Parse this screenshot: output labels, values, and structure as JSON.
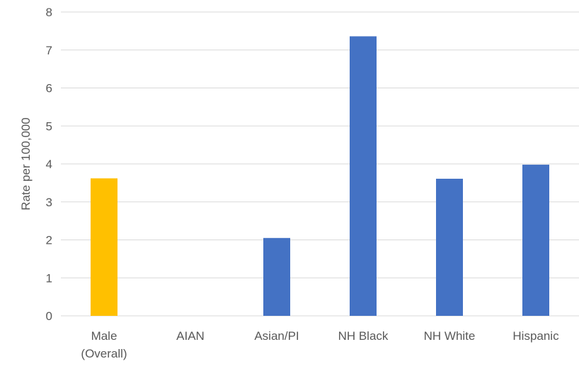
{
  "chart_data": {
    "type": "bar",
    "title": "",
    "xlabel": "",
    "ylabel": "Rate per 100,000",
    "ylim": [
      0,
      8
    ],
    "yticks": [
      0,
      1,
      2,
      3,
      4,
      5,
      6,
      7,
      8
    ],
    "grid": true,
    "legend": "none",
    "categories": [
      [
        "Male",
        "(Overall)"
      ],
      [
        "AIAN"
      ],
      [
        "Asian/PI"
      ],
      [
        "NH Black"
      ],
      [
        "NH White"
      ],
      [
        "Hispanic"
      ]
    ],
    "values": [
      3.62,
      0,
      2.05,
      7.36,
      3.61,
      3.98
    ],
    "colors": [
      "#FFC000",
      "#4472C4",
      "#4472C4",
      "#4472C4",
      "#4472C4",
      "#4472C4"
    ]
  }
}
